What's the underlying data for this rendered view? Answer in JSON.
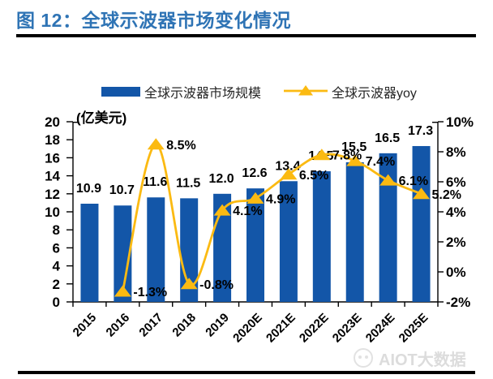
{
  "page": {
    "title": "图 12：全球示波器市场变化情况",
    "watermark_text": "AIOT大数据"
  },
  "chart_data": {
    "type": "combo-bar-line",
    "title": "图 12：全球示波器市场变化情况",
    "categories": [
      "2015",
      "2016",
      "2017",
      "2018",
      "2019",
      "2020E",
      "2021E",
      "2022E",
      "2023E",
      "2024E",
      "2025E"
    ],
    "series": [
      {
        "name": "全球示波器市场规模",
        "type": "bar",
        "axis": "left",
        "color": "#1356A8",
        "values": [
          10.9,
          10.7,
          11.6,
          11.5,
          12.0,
          12.6,
          13.4,
          14.5,
          15.5,
          16.5,
          17.3
        ],
        "labels": [
          "10.9",
          "10.7",
          "11.6",
          "11.5",
          "12.0",
          "12.6",
          "13.4",
          "14.5",
          "15.5",
          "16.5",
          "17.3"
        ]
      },
      {
        "name": "全球示波器yoy",
        "type": "line",
        "axis": "right",
        "color": "#FBBA12",
        "values": [
          null,
          -1.3,
          8.5,
          -0.8,
          4.1,
          4.9,
          6.5,
          7.8,
          7.4,
          6.1,
          5.2
        ],
        "labels": [
          null,
          "-1.3%",
          "8.5%",
          "-0.8%",
          "4.1%",
          "4.9%",
          "6.5%",
          "7.8%",
          "7.4%",
          "6.1%",
          "5.2%"
        ]
      }
    ],
    "left_axis": {
      "label": "(亿美元)",
      "min": 0,
      "max": 20,
      "step": 2,
      "ticks": [
        "0",
        "2",
        "4",
        "6",
        "8",
        "10",
        "12",
        "14",
        "16",
        "18",
        "20"
      ]
    },
    "right_axis": {
      "min": -2,
      "max": 10,
      "step": 2,
      "unit": "%",
      "ticks": [
        "-2%",
        "0%",
        "2%",
        "4%",
        "6%",
        "8%",
        "10%"
      ]
    },
    "legend_position": "top-center",
    "grid": false,
    "text_color": "#000000"
  }
}
